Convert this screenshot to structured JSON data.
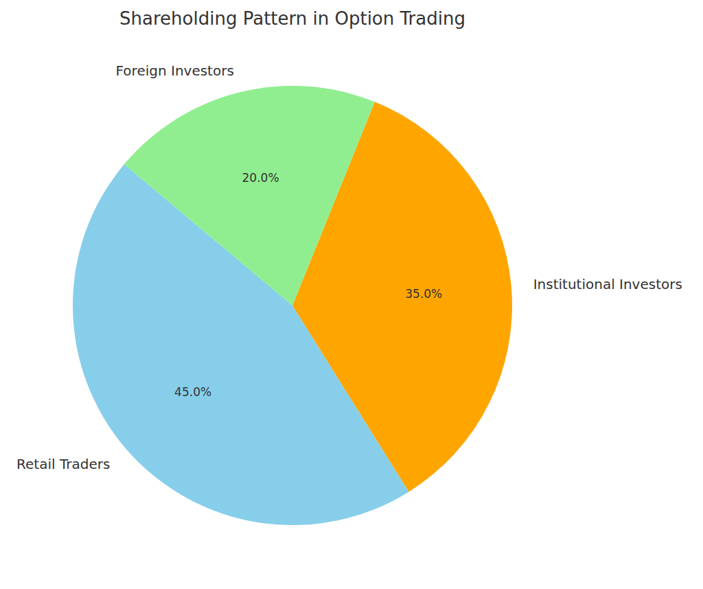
{
  "chart_data": {
    "type": "pie",
    "title": "Shareholding Pattern in Option Trading",
    "categories": [
      "Retail Traders",
      "Institutional Investors",
      "Foreign Investors"
    ],
    "values": [
      45,
      35,
      20
    ],
    "value_labels": [
      "45.0%",
      "35.0%",
      "20.0%"
    ],
    "colors": [
      "#87ceeb",
      "#ffa500",
      "#90ee90"
    ],
    "data_labels": true
  }
}
